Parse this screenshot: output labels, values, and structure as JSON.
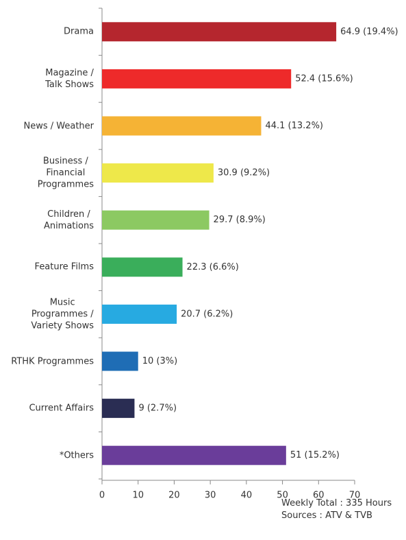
{
  "chart_data": {
    "type": "hbar",
    "categories": [
      "Drama",
      "Magazine /\nTalk Shows",
      "News / Weather",
      "Business /\nFinancial\nProgrammes",
      "Children /\nAnimations",
      "Feature Films",
      "Music\nProgrammes /\nVariety Shows",
      "RTHK Programmes",
      "Current Affairs",
      "*Others"
    ],
    "values": [
      64.9,
      52.4,
      44.1,
      30.9,
      29.7,
      22.3,
      20.7,
      10,
      9,
      51
    ],
    "value_labels": [
      "64.9 (19.4%)",
      "52.4 (15.6%)",
      "44.1 (13.2%)",
      "30.9 (9.2%)",
      "29.7 (8.9%)",
      "22.3 (6.6%)",
      "20.7 (6.2%)",
      "10 (3%)",
      "9 (2.7%)",
      "51 (15.2%)"
    ],
    "colors": [
      "#b5262e",
      "#ee2a2a",
      "#f5b335",
      "#eee84a",
      "#8cc962",
      "#3aae5b",
      "#27aae1",
      "#1f6db5",
      "#2a2d53",
      "#6a3d9a"
    ],
    "xlim": [
      0,
      70
    ],
    "xticks": [
      0,
      10,
      20,
      30,
      40,
      50,
      60,
      70
    ],
    "notes": [
      "Weekly Total : 335 Hours",
      "Sources : ATV & TVB"
    ]
  }
}
